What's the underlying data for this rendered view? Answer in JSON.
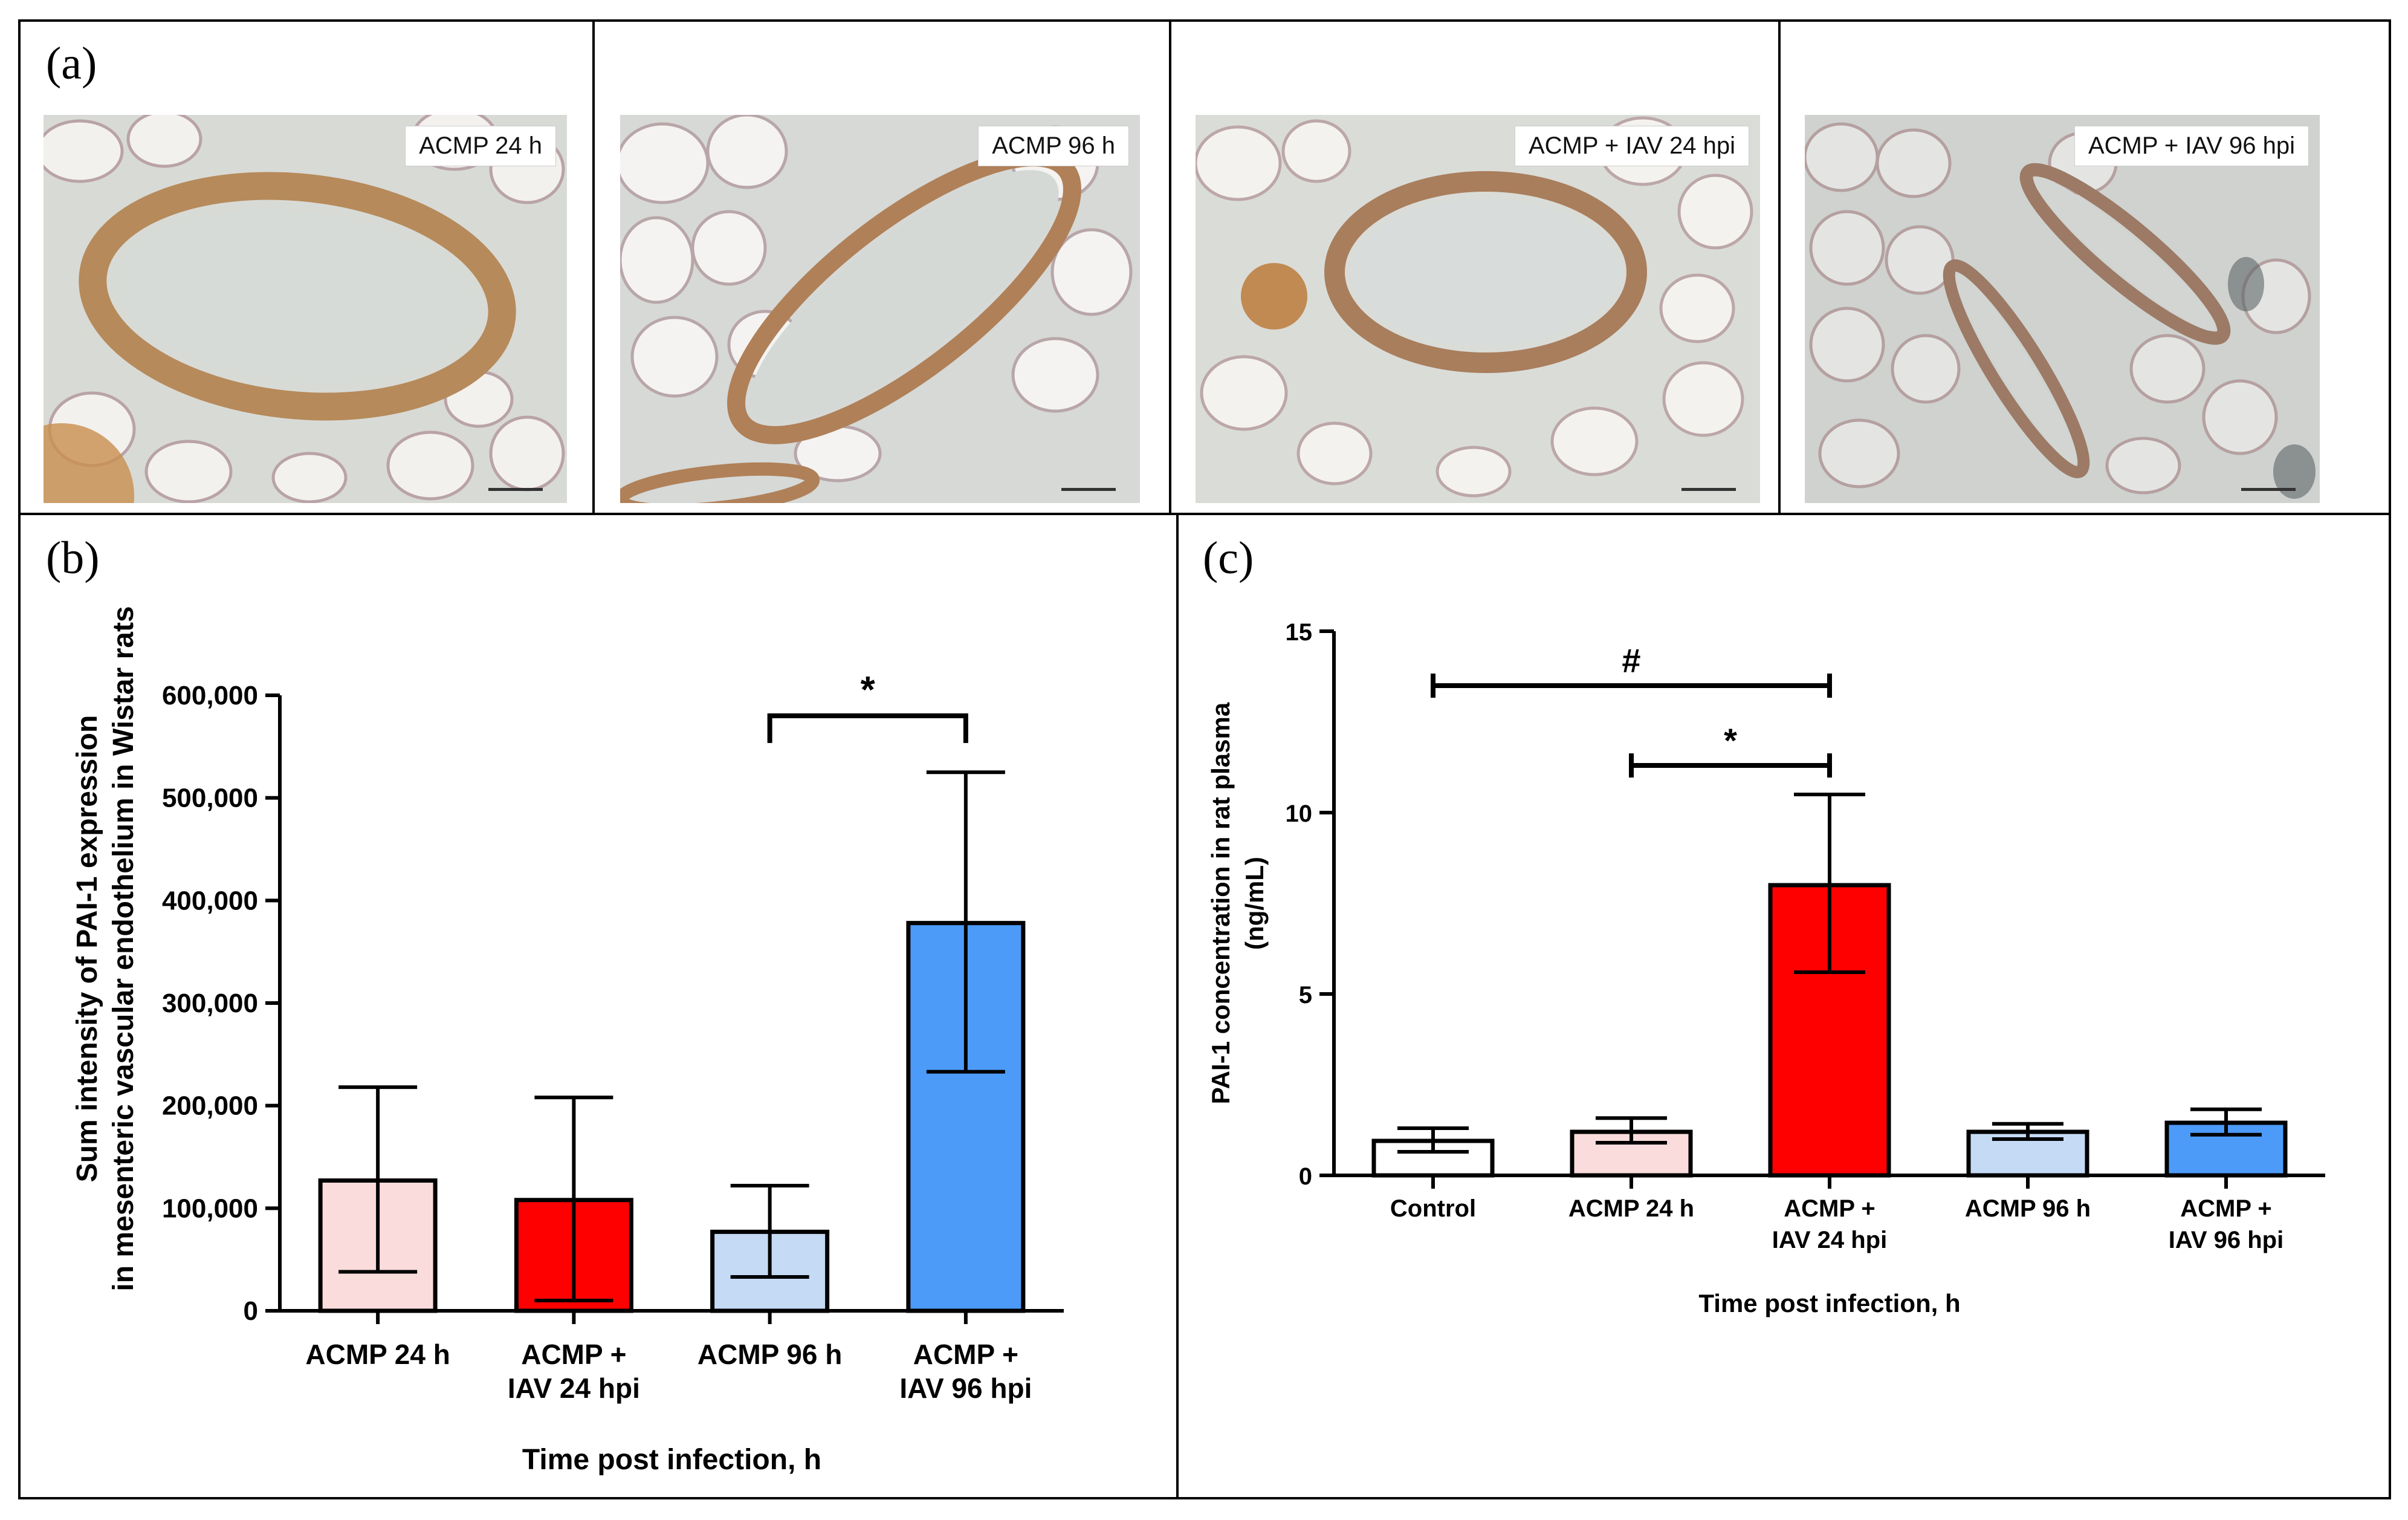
{
  "panels": {
    "a": {
      "letter": "(a)",
      "images": [
        {
          "label": "ACMP 24 h",
          "bg": "#d8dad6",
          "vessel_color": "#b68a5a"
        },
        {
          "label": "ACMP 96 h",
          "bg": "#d6d9d6",
          "vessel_color": "#b08058"
        },
        {
          "label": "ACMP + IAV 24 hpi",
          "bg": "#dadcd8",
          "vessel_color": "#a97e5c"
        },
        {
          "label": "ACMP + IAV 96 hpi",
          "bg": "#cfd2cf",
          "vessel_color": "#9c7a66"
        }
      ]
    },
    "b": {
      "letter": "(b)"
    },
    "c": {
      "letter": "(c)"
    }
  },
  "chart_data": [
    {
      "type": "bar",
      "panel": "b",
      "title": "",
      "categories": [
        [
          "ACMP 24 h"
        ],
        [
          "ACMP +",
          "IAV 24 hpi"
        ],
        [
          "ACMP 96 h"
        ],
        [
          "ACMP +",
          "IAV 96 hpi"
        ]
      ],
      "values": [
        127000,
        108000,
        77000,
        378000
      ],
      "errors_low": [
        38000,
        10000,
        33000,
        233000
      ],
      "errors_high": [
        218000,
        208000,
        122000,
        525000
      ],
      "colors": [
        "#fadcdc",
        "#ff0000",
        "#c5daf5",
        "#4d9bf8"
      ],
      "ylim": [
        0,
        600000
      ],
      "yticks": [
        0,
        100000,
        200000,
        300000,
        400000,
        500000,
        600000
      ],
      "ytick_labels": [
        "0",
        "100,000",
        "200,000",
        "300,000",
        "400,000",
        "500,000",
        "600,000"
      ],
      "ylabel": [
        "Sum intensity of PAI-1 expression",
        "in mesenteric vascular endothelium in Wistar rats"
      ],
      "xlabel": "Time post infection, h",
      "annotations": [
        {
          "from": 2,
          "to": 3,
          "y": 580000,
          "text": "*"
        }
      ],
      "grid": false
    },
    {
      "type": "bar",
      "panel": "c",
      "title": "",
      "categories": [
        [
          "Control"
        ],
        [
          "ACMP 24 h"
        ],
        [
          "ACMP +",
          "IAV 24 hpi"
        ],
        [
          "ACMP 96 h"
        ],
        [
          "ACMP +",
          "IAV 96 hpi"
        ]
      ],
      "values": [
        0.95,
        1.2,
        8.0,
        1.2,
        1.45
      ],
      "errors_low": [
        0.65,
        0.9,
        5.6,
        1.0,
        1.12
      ],
      "errors_high": [
        1.3,
        1.58,
        10.5,
        1.42,
        1.82
      ],
      "colors": [
        "#ffffff",
        "#fadcdc",
        "#ff0000",
        "#c5daf5",
        "#4d9bf8"
      ],
      "ylim": [
        0,
        15
      ],
      "yticks": [
        0,
        5,
        10,
        15
      ],
      "ytick_labels": [
        "0",
        "5",
        "10",
        "15"
      ],
      "ylabel": [
        "PAI-1 concentration in rat plasma",
        "(ng/mL)"
      ],
      "xlabel": "Time post infection, h",
      "annotations": [
        {
          "from": 0,
          "to": 2,
          "y": 13.5,
          "text": "#"
        },
        {
          "from": 1,
          "to": 2,
          "y": 11.3,
          "text": "*"
        }
      ],
      "grid": false
    }
  ]
}
